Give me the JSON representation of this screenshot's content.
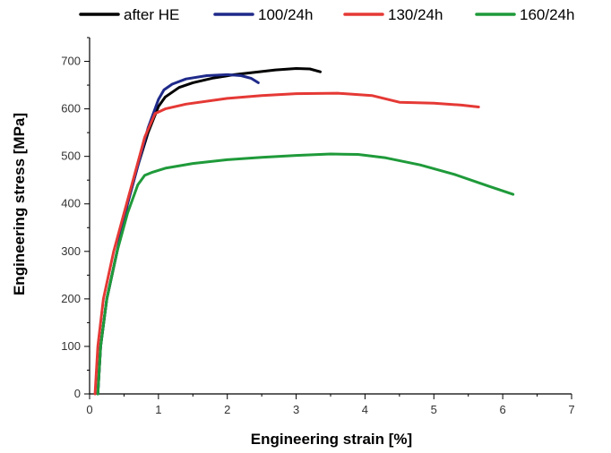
{
  "chart_data": {
    "type": "line",
    "xlabel": "Engineering strain [%]",
    "ylabel": "Engineering stress [MPa]",
    "xlim": [
      0,
      7
    ],
    "ylim": [
      0,
      750
    ],
    "x_ticks": [
      0,
      1,
      2,
      3,
      4,
      5,
      6,
      7
    ],
    "y_ticks": [
      0,
      100,
      200,
      300,
      400,
      500,
      600,
      700
    ],
    "grid": false,
    "legend_position": "top",
    "series": [
      {
        "name": "after HE",
        "color": "#000000",
        "x": [
          0.12,
          0.16,
          0.25,
          0.4,
          0.55,
          0.7,
          0.85,
          1.0,
          1.1,
          1.3,
          1.5,
          1.8,
          2.1,
          2.4,
          2.7,
          3.0,
          3.2,
          3.35
        ],
        "y": [
          0,
          100,
          200,
          300,
          400,
          480,
          550,
          605,
          625,
          645,
          655,
          665,
          672,
          677,
          682,
          685,
          684,
          678
        ]
      },
      {
        "name": "100/24h",
        "color": "#1f2a8a",
        "x": [
          0.12,
          0.16,
          0.25,
          0.4,
          0.55,
          0.7,
          0.85,
          1.0,
          1.08,
          1.2,
          1.4,
          1.7,
          2.0,
          2.2,
          2.35,
          2.45
        ],
        "y": [
          0,
          100,
          200,
          300,
          400,
          480,
          560,
          620,
          640,
          652,
          663,
          670,
          672,
          670,
          664,
          655
        ]
      },
      {
        "name": "130/24h",
        "color": "#e53935",
        "x": [
          0.08,
          0.12,
          0.2,
          0.35,
          0.5,
          0.65,
          0.8,
          0.95,
          1.1,
          1.4,
          2.0,
          2.5,
          3.0,
          3.6,
          4.1,
          4.5,
          5.0,
          5.4,
          5.65
        ],
        "y": [
          0,
          100,
          200,
          300,
          380,
          460,
          540,
          590,
          600,
          610,
          622,
          628,
          632,
          633,
          628,
          614,
          612,
          608,
          604
        ]
      },
      {
        "name": "160/24h",
        "color": "#1f9a3a",
        "x": [
          0.12,
          0.16,
          0.25,
          0.4,
          0.55,
          0.7,
          0.8,
          0.9,
          1.1,
          1.5,
          2.0,
          2.5,
          3.0,
          3.5,
          3.9,
          4.3,
          4.8,
          5.3,
          5.8,
          6.15
        ],
        "y": [
          0,
          100,
          200,
          300,
          380,
          440,
          460,
          466,
          475,
          485,
          493,
          498,
          502,
          505,
          504,
          497,
          482,
          462,
          437,
          420
        ]
      }
    ]
  }
}
